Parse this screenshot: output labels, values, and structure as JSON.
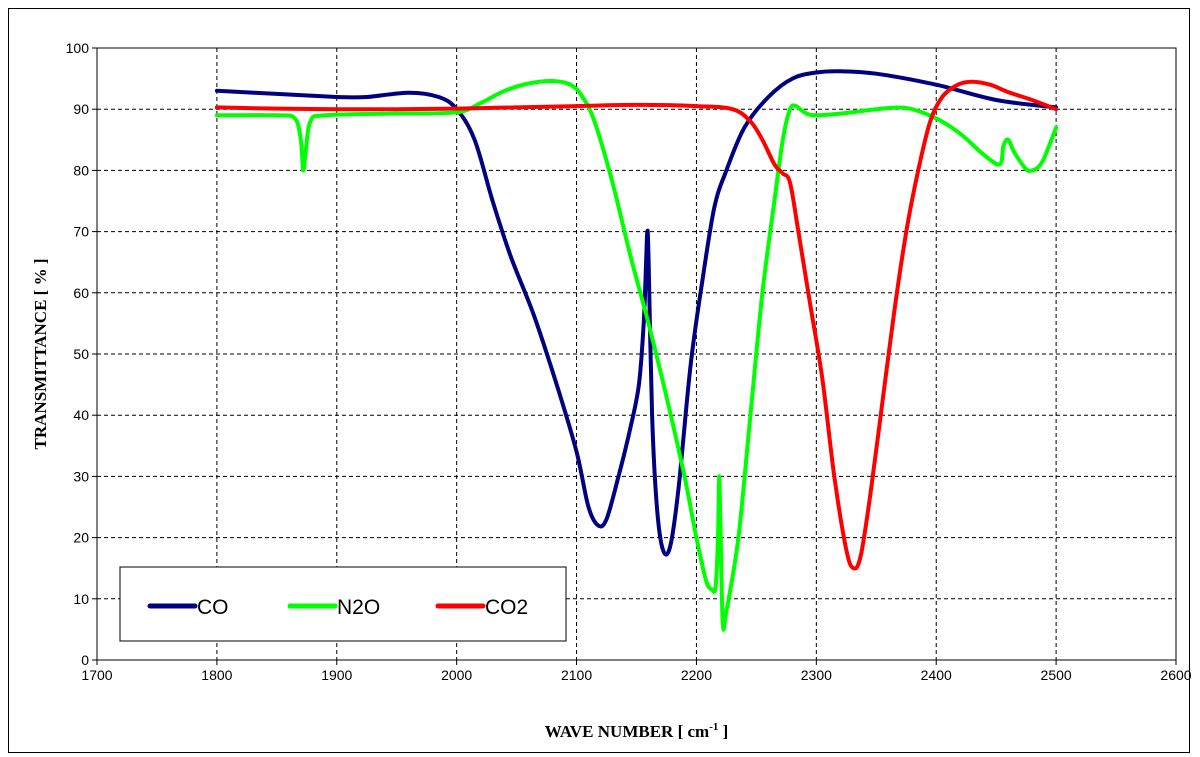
{
  "chart_data": {
    "type": "line",
    "title": "",
    "xlabel": "WAVE NUMBER [ cm",
    "xlabel_sup": "-1",
    "xlabel_suffix": " ]",
    "ylabel": "TRANSMITTANCE [ % ]",
    "xlim": [
      1700,
      2600
    ],
    "ylim": [
      0,
      100
    ],
    "xticks": [
      1700,
      1800,
      1900,
      2000,
      2100,
      2200,
      2300,
      2400,
      2500,
      2600
    ],
    "yticks": [
      0,
      10,
      20,
      30,
      40,
      50,
      60,
      70,
      80,
      90,
      100
    ],
    "grid": true,
    "legend_position": "bottom-left",
    "series": [
      {
        "name": "CO",
        "color": "#000080",
        "points": [
          [
            1800,
            93
          ],
          [
            1850,
            92.5
          ],
          [
            1900,
            92
          ],
          [
            1925,
            92
          ],
          [
            1960,
            92.7
          ],
          [
            1985,
            92
          ],
          [
            2000,
            90
          ],
          [
            2015,
            85
          ],
          [
            2030,
            75
          ],
          [
            2045,
            66
          ],
          [
            2065,
            56
          ],
          [
            2085,
            44
          ],
          [
            2100,
            34
          ],
          [
            2110,
            25
          ],
          [
            2118,
            22
          ],
          [
            2125,
            23
          ],
          [
            2135,
            30
          ],
          [
            2145,
            38
          ],
          [
            2152,
            45
          ],
          [
            2156,
            55
          ],
          [
            2158,
            65
          ],
          [
            2159,
            70
          ],
          [
            2160,
            66
          ],
          [
            2163,
            40
          ],
          [
            2167,
            25
          ],
          [
            2172,
            18
          ],
          [
            2178,
            18.5
          ],
          [
            2185,
            28
          ],
          [
            2195,
            48
          ],
          [
            2205,
            62
          ],
          [
            2215,
            74
          ],
          [
            2225,
            80
          ],
          [
            2240,
            87
          ],
          [
            2260,
            92
          ],
          [
            2280,
            95
          ],
          [
            2300,
            96
          ],
          [
            2320,
            96.2
          ],
          [
            2350,
            95.8
          ],
          [
            2400,
            94
          ],
          [
            2450,
            91.5
          ],
          [
            2500,
            90.3
          ]
        ]
      },
      {
        "name": "N2O",
        "color": "#00ff00",
        "points": [
          [
            1800,
            89
          ],
          [
            1850,
            89
          ],
          [
            1865,
            88.5
          ],
          [
            1870,
            85
          ],
          [
            1872,
            80
          ],
          [
            1874,
            83
          ],
          [
            1878,
            88
          ],
          [
            1890,
            89
          ],
          [
            1950,
            89.3
          ],
          [
            2000,
            89.5
          ],
          [
            2020,
            91
          ],
          [
            2040,
            93
          ],
          [
            2060,
            94.2
          ],
          [
            2080,
            94.6
          ],
          [
            2095,
            94
          ],
          [
            2105,
            92
          ],
          [
            2115,
            88
          ],
          [
            2130,
            78
          ],
          [
            2145,
            66
          ],
          [
            2160,
            55
          ],
          [
            2175,
            43
          ],
          [
            2190,
            30
          ],
          [
            2200,
            20
          ],
          [
            2208,
            13
          ],
          [
            2213,
            11.5
          ],
          [
            2216,
            12
          ],
          [
            2218,
            20
          ],
          [
            2219,
            30
          ],
          [
            2220,
            22
          ],
          [
            2222,
            6
          ],
          [
            2225,
            8
          ],
          [
            2235,
            20
          ],
          [
            2245,
            40
          ],
          [
            2255,
            60
          ],
          [
            2265,
            75
          ],
          [
            2272,
            85
          ],
          [
            2278,
            90
          ],
          [
            2283,
            90.5
          ],
          [
            2290,
            89.5
          ],
          [
            2300,
            89
          ],
          [
            2330,
            89.5
          ],
          [
            2350,
            90
          ],
          [
            2375,
            90.2
          ],
          [
            2400,
            88.5
          ],
          [
            2420,
            86
          ],
          [
            2440,
            82.5
          ],
          [
            2453,
            81
          ],
          [
            2456,
            84
          ],
          [
            2460,
            85
          ],
          [
            2465,
            83
          ],
          [
            2475,
            80.2
          ],
          [
            2480,
            80
          ],
          [
            2485,
            80.5
          ],
          [
            2490,
            82
          ],
          [
            2500,
            87
          ]
        ]
      },
      {
        "name": "CO2",
        "color": "#ff0000",
        "points": [
          [
            1800,
            90.3
          ],
          [
            1850,
            90.1
          ],
          [
            1900,
            90
          ],
          [
            1950,
            90
          ],
          [
            2000,
            90.1
          ],
          [
            2050,
            90.3
          ],
          [
            2100,
            90.5
          ],
          [
            2150,
            90.7
          ],
          [
            2200,
            90.5
          ],
          [
            2230,
            90
          ],
          [
            2245,
            88
          ],
          [
            2255,
            85
          ],
          [
            2265,
            81
          ],
          [
            2272,
            79.5
          ],
          [
            2278,
            78
          ],
          [
            2285,
            70
          ],
          [
            2295,
            58
          ],
          [
            2305,
            46
          ],
          [
            2315,
            30
          ],
          [
            2325,
            18
          ],
          [
            2331,
            15
          ],
          [
            2337,
            17
          ],
          [
            2345,
            27
          ],
          [
            2355,
            42
          ],
          [
            2365,
            57
          ],
          [
            2375,
            70
          ],
          [
            2385,
            80
          ],
          [
            2395,
            88
          ],
          [
            2405,
            92
          ],
          [
            2418,
            94
          ],
          [
            2430,
            94.5
          ],
          [
            2445,
            94
          ],
          [
            2460,
            92.8
          ],
          [
            2480,
            91.5
          ],
          [
            2500,
            90
          ]
        ]
      }
    ]
  }
}
